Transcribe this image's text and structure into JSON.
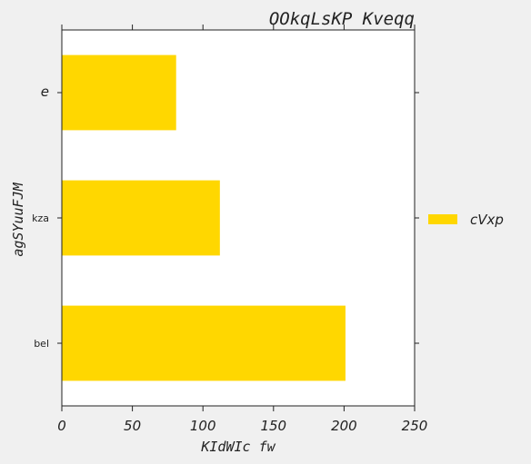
{
  "chart_data": {
    "type": "bar",
    "orientation": "horizontal",
    "title": "OOkqLsKP Kveqq",
    "xlabel": "KIdWIc fw",
    "ylabel": "agSYuuFJM",
    "categories": [
      "bel",
      "kza",
      "e"
    ],
    "series": [
      {
        "name": "cVxp",
        "values": [
          201,
          112,
          81
        ],
        "color": "#ffd700"
      }
    ],
    "xlim": [
      0,
      250
    ],
    "xticks": [
      0,
      50,
      100,
      150,
      200,
      250
    ],
    "grid": false,
    "legend_placement": "outside-right"
  },
  "colors": {
    "background": "#f0f0f0",
    "plot_background": "#ffffff",
    "axis": "#222222",
    "text": "#222222"
  }
}
